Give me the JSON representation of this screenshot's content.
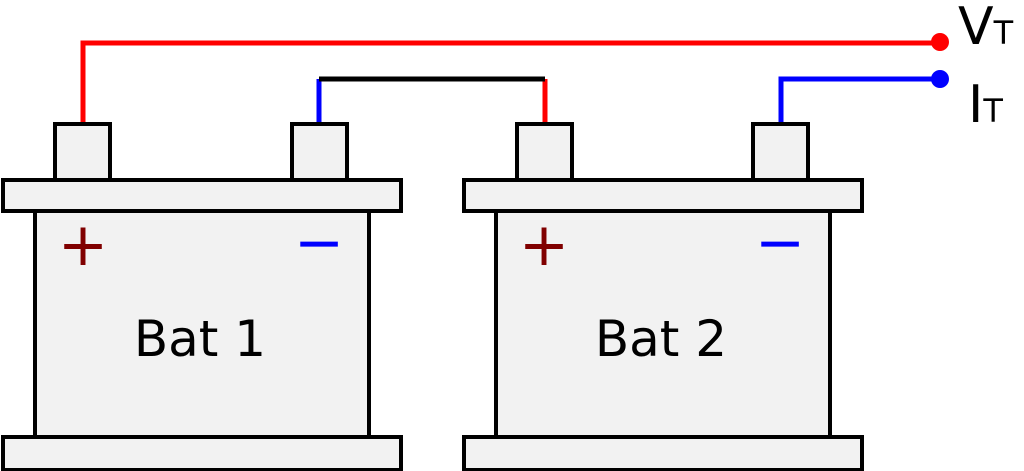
{
  "colors": {
    "positive_wire": "#ff0000",
    "negative_wire": "#0000ff",
    "link_wire": "#000000",
    "battery_fill": "#f2f2f2",
    "battery_stroke": "#000000",
    "plus_sign": "#800000",
    "minus_sign": "#0000ff"
  },
  "batteries": [
    {
      "label": "Bat 1",
      "plus_symbol": "+",
      "minus_symbol": "−"
    },
    {
      "label": "Bat 2",
      "plus_symbol": "+",
      "minus_symbol": "−"
    }
  ],
  "terminals": {
    "voltage": {
      "main": "V",
      "sub": "T"
    },
    "current": {
      "main": "I",
      "sub": "T"
    }
  }
}
